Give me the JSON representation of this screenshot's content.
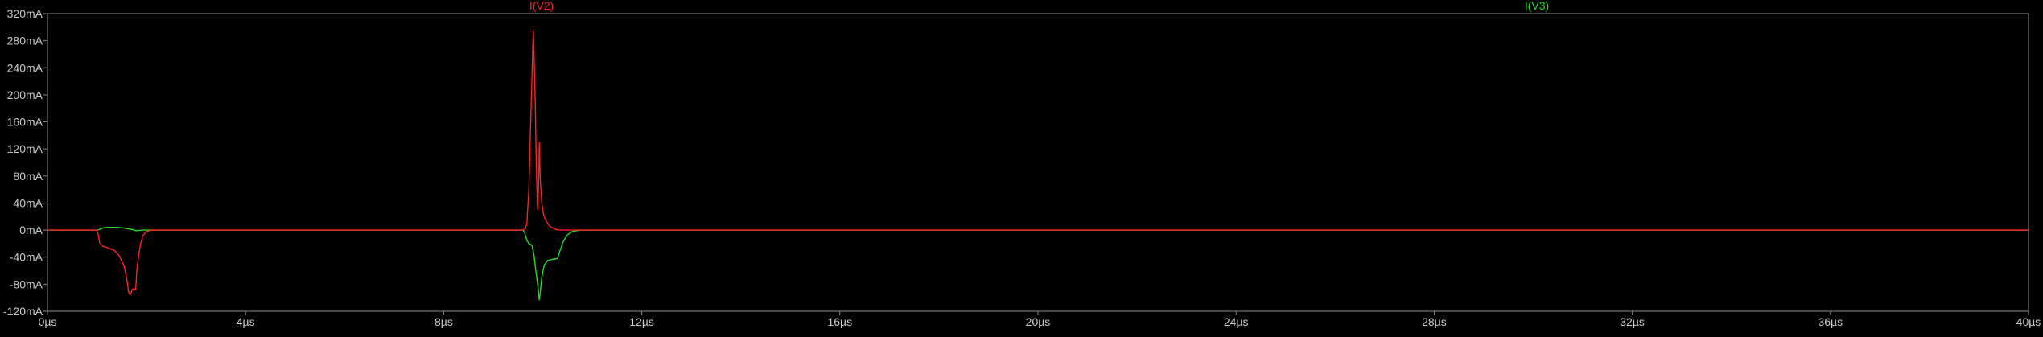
{
  "chart_data": {
    "type": "line",
    "title": "",
    "xlabel": "",
    "ylabel": "",
    "xlim": [
      0,
      40
    ],
    "ylim": [
      -120,
      320
    ],
    "x_unit": "µs",
    "y_unit": "mA",
    "x_ticks": [
      "0µs",
      "4µs",
      "8µs",
      "12µs",
      "16µs",
      "20µs",
      "24µs",
      "28µs",
      "32µs",
      "36µs",
      "40µs"
    ],
    "x_tick_values": [
      0,
      4,
      8,
      12,
      16,
      20,
      24,
      28,
      32,
      36,
      40
    ],
    "y_ticks": [
      "320mA",
      "280mA",
      "240mA",
      "200mA",
      "160mA",
      "120mA",
      "80mA",
      "40mA",
      "0mA",
      "-40mA",
      "-80mA",
      "-120mA"
    ],
    "y_tick_values": [
      320,
      280,
      240,
      200,
      160,
      120,
      80,
      40,
      0,
      -40,
      -80,
      -120
    ],
    "grid": false,
    "legend_placement": "top",
    "series": [
      {
        "name": "I(V2)",
        "color": "#ff2020",
        "points": [
          [
            0,
            0
          ],
          [
            1.0,
            0
          ],
          [
            1.02,
            -5
          ],
          [
            1.05,
            -18
          ],
          [
            1.12,
            -24
          ],
          [
            1.25,
            -27
          ],
          [
            1.35,
            -30
          ],
          [
            1.45,
            -38
          ],
          [
            1.55,
            -54
          ],
          [
            1.6,
            -72
          ],
          [
            1.64,
            -92
          ],
          [
            1.67,
            -96
          ],
          [
            1.72,
            -87
          ],
          [
            1.78,
            -88
          ],
          [
            1.81,
            -55
          ],
          [
            1.84,
            -38
          ],
          [
            1.88,
            -20
          ],
          [
            1.93,
            -8
          ],
          [
            2.0,
            -2
          ],
          [
            2.1,
            0
          ],
          [
            9.6,
            0
          ],
          [
            9.65,
            2
          ],
          [
            9.68,
            10
          ],
          [
            9.72,
            60
          ],
          [
            9.75,
            140
          ],
          [
            9.78,
            220
          ],
          [
            9.8,
            275
          ],
          [
            9.81,
            295
          ],
          [
            9.82,
            272
          ],
          [
            9.85,
            185
          ],
          [
            9.87,
            95
          ],
          [
            9.89,
            40
          ],
          [
            9.9,
            30
          ],
          [
            9.92,
            80
          ],
          [
            9.93,
            130
          ],
          [
            9.95,
            75
          ],
          [
            9.98,
            40
          ],
          [
            10.02,
            22
          ],
          [
            10.08,
            12
          ],
          [
            10.15,
            5
          ],
          [
            10.25,
            1
          ],
          [
            10.35,
            0
          ],
          [
            40,
            0
          ]
        ]
      },
      {
        "name": "I(V3)",
        "color": "#22dd22",
        "points": [
          [
            0,
            0
          ],
          [
            1.0,
            0
          ],
          [
            1.05,
            1
          ],
          [
            1.12,
            3
          ],
          [
            1.2,
            4
          ],
          [
            1.4,
            4
          ],
          [
            1.55,
            3
          ],
          [
            1.7,
            1
          ],
          [
            1.8,
            -1
          ],
          [
            1.9,
            0
          ],
          [
            2.1,
            0
          ],
          [
            9.6,
            0
          ],
          [
            9.63,
            -3
          ],
          [
            9.68,
            -15
          ],
          [
            9.72,
            -20
          ],
          [
            9.78,
            -22
          ],
          [
            9.82,
            -35
          ],
          [
            9.86,
            -60
          ],
          [
            9.9,
            -82
          ],
          [
            9.93,
            -103
          ],
          [
            9.95,
            -92
          ],
          [
            9.98,
            -70
          ],
          [
            10.03,
            -52
          ],
          [
            10.1,
            -45
          ],
          [
            10.2,
            -43
          ],
          [
            10.3,
            -42
          ],
          [
            10.35,
            -30
          ],
          [
            10.42,
            -16
          ],
          [
            10.5,
            -7
          ],
          [
            10.6,
            -2
          ],
          [
            10.75,
            0
          ],
          [
            40,
            0
          ]
        ]
      }
    ]
  }
}
